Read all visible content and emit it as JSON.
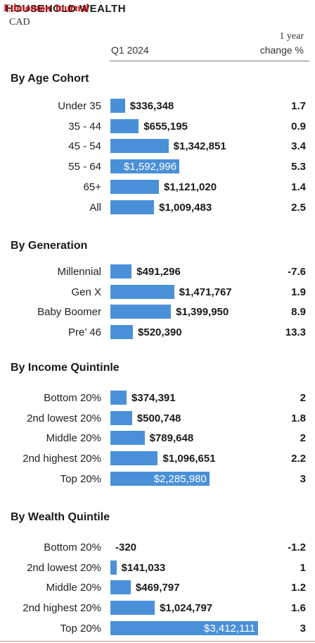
{
  "header": {
    "title": "HOUSEHOLD WEALTH",
    "overlay": "Edmonton Journal",
    "unit": "CAD",
    "col_value": "Q1 2024",
    "col_change_line1": "1 year",
    "col_change_line2": "change %"
  },
  "colors": {
    "bar": "#4a90d9",
    "overlay": "#d01010"
  },
  "chart_data": {
    "type": "bar",
    "orientation": "horizontal",
    "sections": [
      {
        "title": "By Age Cohort",
        "rows": [
          {
            "label": "Under 35",
            "value": 336348,
            "value_text": "$336,348",
            "change": "1.7"
          },
          {
            "label": "35 - 44",
            "value": 655195,
            "value_text": "$655,195",
            "change": "0.9"
          },
          {
            "label": "45 - 54",
            "value": 1342851,
            "value_text": "$1,342,851",
            "change": "3.4"
          },
          {
            "label": "55 - 64",
            "value": 1592996,
            "value_text": "$1,592,996",
            "change": "5.3"
          },
          {
            "label": "65+",
            "value": 1121020,
            "value_text": "$1,121,020",
            "change": "1.4"
          },
          {
            "label": "All",
            "value": 1009483,
            "value_text": "$1,009,483",
            "change": "2.5"
          }
        ]
      },
      {
        "title": "By Generation",
        "rows": [
          {
            "label": "Millennial",
            "value": 491296,
            "value_text": "$491,296",
            "change": "-7.6"
          },
          {
            "label": "Gen X",
            "value": 1471767,
            "value_text": "$1,471,767",
            "change": "1.9"
          },
          {
            "label": "Baby Boomer",
            "value": 1399950,
            "value_text": "$1,399,950",
            "change": "8.9"
          },
          {
            "label": "Pre’ 46",
            "value": 520390,
            "value_text": "$520,390",
            "change": "13.3"
          }
        ]
      },
      {
        "title": "By Income Quintinle",
        "rows": [
          {
            "label": "Bottom 20%",
            "value": 374391,
            "value_text": "$374,391",
            "change": "2"
          },
          {
            "label": "2nd lowest 20%",
            "value": 500748,
            "value_text": "$500,748",
            "change": "1.8"
          },
          {
            "label": "Middle 20%",
            "value": 789648,
            "value_text": "$789,648",
            "change": "2"
          },
          {
            "label": "2nd highest 20%",
            "value": 1096651,
            "value_text": "$1,096,651",
            "change": "2.2"
          },
          {
            "label": "Top 20%",
            "value": 2285980,
            "value_text": "$2,285,980",
            "change": "3"
          }
        ]
      },
      {
        "title": "By Wealth Quintile",
        "rows": [
          {
            "label": "Bottom 20%",
            "value": -320,
            "value_text": "-320",
            "change": "-1.2"
          },
          {
            "label": "2nd lowest 20%",
            "value": 141033,
            "value_text": "$141,033",
            "change": "1"
          },
          {
            "label": "Middle 20%",
            "value": 469797,
            "value_text": "$469,797",
            "change": "1.2"
          },
          {
            "label": "2nd highest 20%",
            "value": 1024797,
            "value_text": "$1,024,797",
            "change": "1.6"
          },
          {
            "label": "Top 20%",
            "value": 3412111,
            "value_text": "$3,412,111",
            "change": "3"
          }
        ]
      }
    ]
  }
}
